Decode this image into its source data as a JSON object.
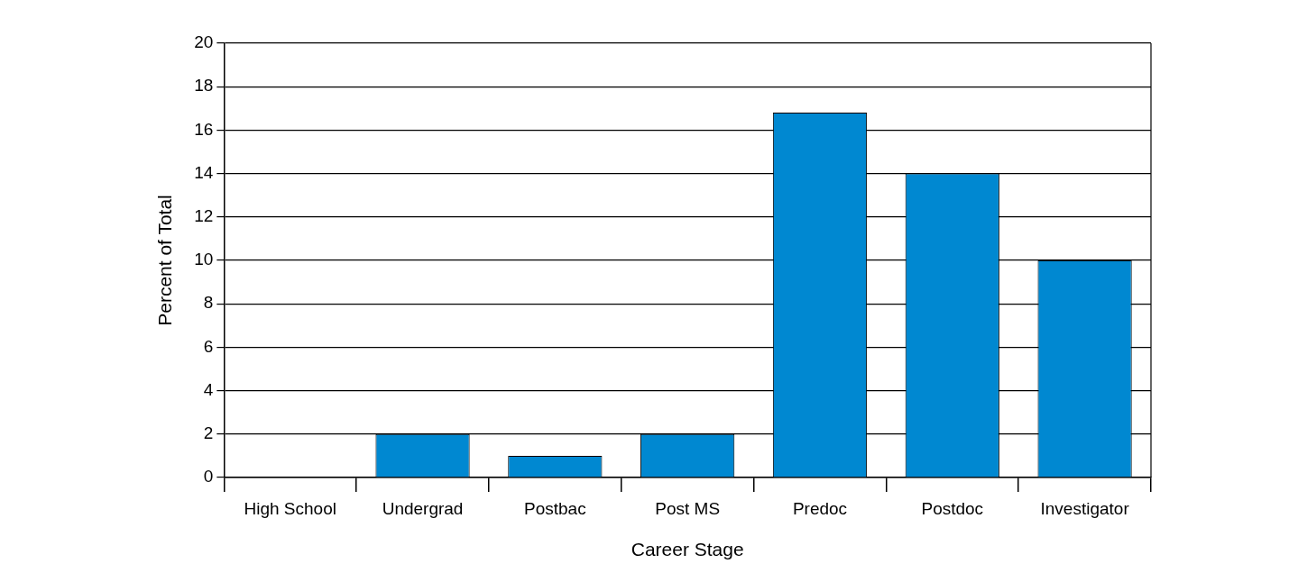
{
  "chart_data": {
    "type": "bar",
    "xlabel": "Career Stage",
    "ylabel": "Percent of Total",
    "categories": [
      "High School",
      "Undergrad",
      "Postbac",
      "Post MS",
      "Predoc",
      "Postdoc",
      "Investigator"
    ],
    "values": [
      0,
      2,
      1,
      2,
      16.8,
      14,
      10
    ],
    "color": "#0088d1",
    "ylim": [
      0,
      20
    ],
    "yticks": [
      0,
      2,
      4,
      6,
      8,
      10,
      12,
      14,
      16,
      18,
      20
    ],
    "grid": "y",
    "legend": false
  }
}
